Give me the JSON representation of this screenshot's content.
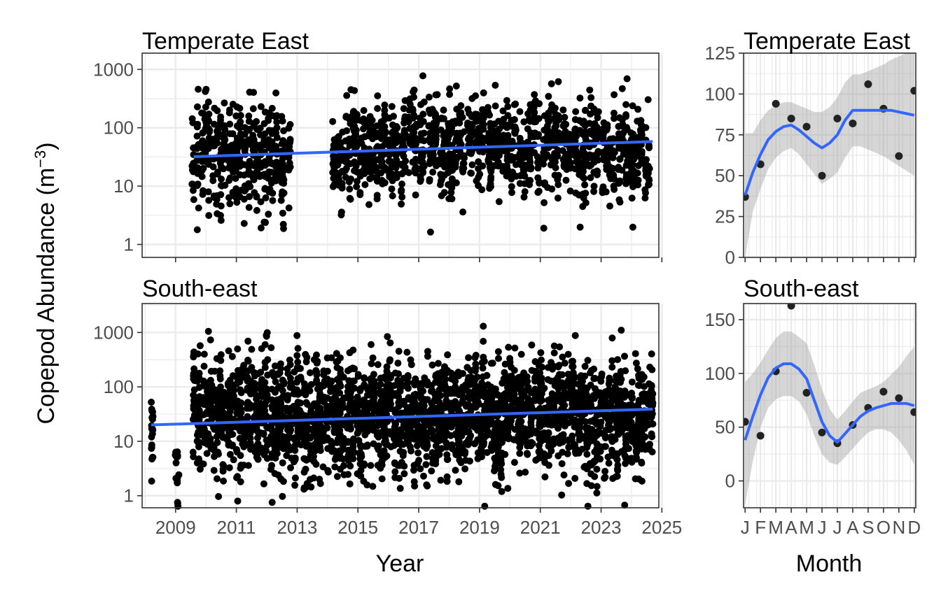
{
  "colors": {
    "points": "#000000",
    "smooth_line": "#3366FF",
    "confidence_band": "#999999",
    "grid_major": "#EBEBEB",
    "panel_border": "#333333",
    "tick_text": "#4D4D4D"
  },
  "axes": {
    "ylabel": "Copepod Abundance (m",
    "ylabel_superscript": "−3",
    "ylabel_close": ")",
    "xlabel_left": "Year",
    "xlabel_right": "Month"
  },
  "chart_data": [
    {
      "type": "scatter",
      "panel": "Temperate East (year)",
      "title": "Temperate East",
      "xlabel": "",
      "ylabel": "Copepod Abundance (m−3)",
      "y_scale": "log10",
      "xlim": [
        2007.9,
        2024.9
      ],
      "ylim": [
        0.6,
        1900
      ],
      "x_ticks": [
        "2009",
        "2011",
        "2013",
        "2015",
        "2017",
        "2019",
        "2021",
        "2023",
        "2025"
      ],
      "y_ticks": [
        "1",
        "10",
        "100",
        "1000"
      ],
      "grid": true,
      "point_count_approx": 2000,
      "trend_line": {
        "method": "linear (log scale)",
        "x": [
          2009.6,
          2024.7
        ],
        "y": [
          32,
          58
        ]
      },
      "sampled_points_note": "dense cloud between ~2009.5 and ~2024.7, values roughly 1 to 1600"
    },
    {
      "type": "scatter",
      "panel": "Temperate East (month)",
      "title": "Temperate East",
      "xlabel": "",
      "ylabel": "",
      "xlim": [
        0.9,
        12.1
      ],
      "ylim": [
        0,
        125
      ],
      "x_ticks": [],
      "y_ticks": [
        "0",
        "25",
        "50",
        "75",
        "100",
        "125"
      ],
      "grid": true,
      "x": [
        1,
        2,
        3,
        4,
        5,
        6,
        7,
        8,
        9,
        10,
        11,
        12
      ],
      "y": [
        37,
        57,
        94,
        85,
        80,
        50,
        85,
        82,
        106,
        91,
        62,
        102
      ],
      "smooth_line": {
        "x": [
          1,
          1.5,
          2,
          2.5,
          3,
          3.5,
          4,
          4.5,
          5,
          5.5,
          6,
          6.5,
          7,
          7.5,
          8,
          8.5,
          9,
          9.5,
          10,
          10.5,
          11,
          11.5,
          12
        ],
        "y": [
          38,
          52,
          63,
          72,
          77,
          80,
          81,
          78,
          74,
          70,
          67,
          70,
          75,
          84,
          90,
          90,
          90,
          90,
          90,
          90,
          89,
          88,
          87
        ],
        "lower": [
          0,
          28,
          42,
          54,
          61,
          65,
          67,
          63,
          57,
          51,
          45,
          48,
          52,
          61,
          68,
          68,
          66,
          64,
          62,
          59,
          56,
          53,
          50
        ],
        "upper": [
          76,
          76,
          84,
          90,
          93,
          95,
          95,
          93,
          91,
          89,
          89,
          92,
          98,
          107,
          112,
          112,
          114,
          116,
          118,
          121,
          123,
          125,
          127
        ]
      }
    },
    {
      "type": "scatter",
      "panel": "South-east (year)",
      "title": "South-east",
      "xlabel": "Year",
      "ylabel": "Copepod Abundance (m−3)",
      "y_scale": "log10",
      "xlim": [
        2007.9,
        2024.9
      ],
      "ylim": [
        0.6,
        3400
      ],
      "x_ticks": [
        "2009",
        "2011",
        "2013",
        "2015",
        "2017",
        "2019",
        "2021",
        "2023",
        "2025"
      ],
      "y_ticks": [
        "1",
        "10",
        "100",
        "1000"
      ],
      "grid": true,
      "point_count_approx": 3000,
      "trend_line": {
        "method": "linear (log scale)",
        "x": [
          2008.2,
          2024.7
        ],
        "y": [
          20,
          39
        ]
      },
      "sampled_points_note": "dense cloud between ~2008.2 and ~2024.7, values roughly 0.7 to 3300"
    },
    {
      "type": "scatter",
      "panel": "South-east (month)",
      "title": "South-east",
      "xlabel": "Month",
      "ylabel": "",
      "xlim": [
        0.9,
        12.1
      ],
      "ylim": [
        -25,
        165
      ],
      "x_ticks": [
        "J",
        "F",
        "M",
        "A",
        "M",
        "J",
        "J",
        "A",
        "S",
        "O",
        "N",
        "D"
      ],
      "y_ticks": [
        "0",
        "50",
        "100",
        "150"
      ],
      "grid": true,
      "x": [
        1,
        2,
        3,
        4,
        5,
        6,
        7,
        8,
        9,
        10,
        11,
        12
      ],
      "y": [
        55,
        42,
        102,
        163,
        82,
        45,
        35,
        52,
        68,
        83,
        77,
        64
      ],
      "smooth_line": {
        "x": [
          1,
          1.5,
          2,
          2.5,
          3,
          3.5,
          4,
          4.5,
          5,
          5.5,
          6,
          6.5,
          7,
          7.5,
          8,
          8.5,
          9,
          9.5,
          10,
          10.5,
          11,
          11.5,
          12
        ],
        "y": [
          38,
          60,
          80,
          96,
          105,
          109,
          109,
          104,
          95,
          75,
          55,
          42,
          36,
          44,
          52,
          60,
          65,
          68,
          70,
          72,
          72,
          72,
          70
        ],
        "lower": [
          -22,
          18,
          50,
          68,
          76,
          79,
          79,
          74,
          62,
          42,
          25,
          17,
          15,
          22,
          30,
          38,
          45,
          48,
          48,
          45,
          38,
          28,
          15
        ],
        "upper": [
          92,
          100,
          110,
          122,
          133,
          139,
          139,
          134,
          128,
          108,
          85,
          67,
          57,
          65,
          74,
          82,
          85,
          88,
          92,
          99,
          106,
          116,
          125
        ]
      }
    }
  ]
}
